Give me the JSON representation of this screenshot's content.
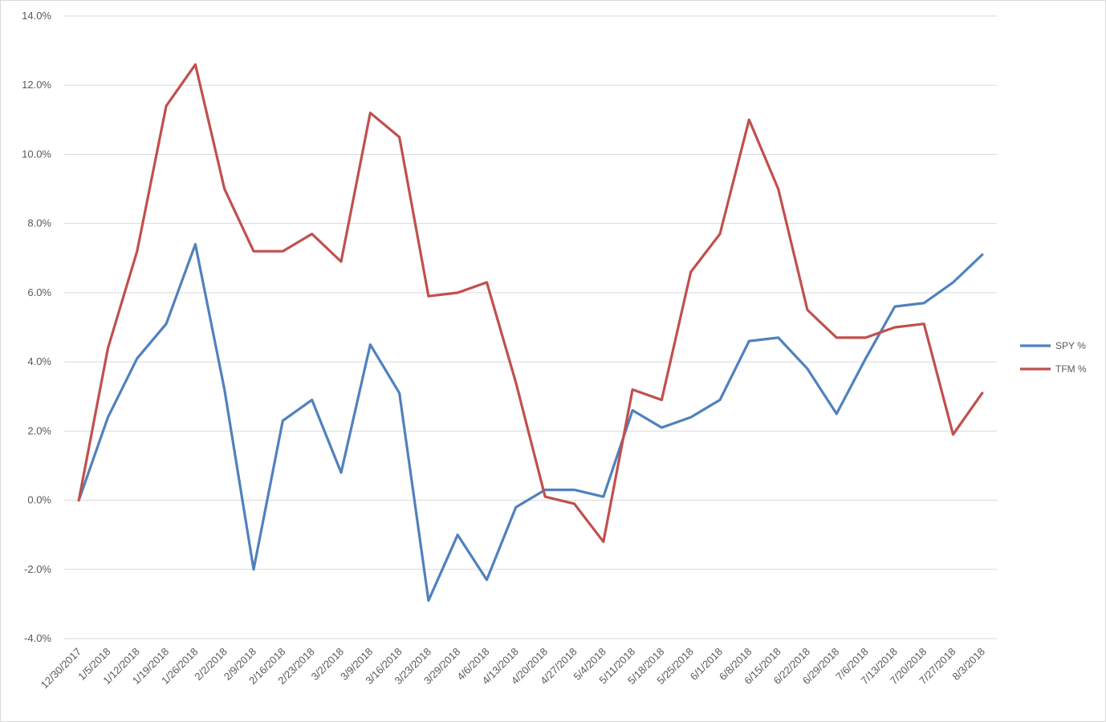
{
  "chart_data": {
    "type": "line",
    "title": "",
    "xlabel": "",
    "ylabel": "",
    "ylim": [
      -4.0,
      14.0
    ],
    "ytick_step": 2.0,
    "ytick_format": "percent_1dp",
    "grid": true,
    "legend_position": "right",
    "categories": [
      "12/30/2017",
      "1/5/2018",
      "1/12/2018",
      "1/19/2018",
      "1/26/2018",
      "2/2/2018",
      "2/9/2018",
      "2/16/2018",
      "2/23/2018",
      "3/2/2018",
      "3/9/2018",
      "3/16/2018",
      "3/23/2018",
      "3/29/2018",
      "4/6/2018",
      "4/13/2018",
      "4/20/2018",
      "4/27/2018",
      "5/4/2018",
      "5/11/2018",
      "5/18/2018",
      "5/25/2018",
      "6/1/2018",
      "6/8/2018",
      "6/15/2018",
      "6/22/2018",
      "6/29/2018",
      "7/6/2018",
      "7/13/2018",
      "7/20/2018",
      "7/27/2018",
      "8/3/2018"
    ],
    "series": [
      {
        "name": "SPY %",
        "color": "#4f81bd",
        "values": [
          0.0,
          2.4,
          4.1,
          5.1,
          7.4,
          3.2,
          -2.0,
          2.3,
          2.9,
          0.8,
          4.5,
          3.1,
          -2.9,
          -1.0,
          -2.3,
          -0.2,
          0.3,
          0.3,
          0.1,
          2.6,
          2.1,
          2.4,
          2.9,
          4.6,
          4.7,
          3.8,
          2.5,
          4.1,
          5.6,
          5.7,
          6.3,
          7.1
        ]
      },
      {
        "name": "TFM %",
        "color": "#c0504d",
        "values": [
          0.0,
          4.4,
          7.2,
          11.4,
          12.6,
          9.0,
          7.2,
          7.2,
          7.7,
          6.9,
          11.2,
          10.5,
          5.9,
          6.0,
          6.3,
          3.4,
          0.1,
          -0.1,
          -1.2,
          3.2,
          2.9,
          6.6,
          7.7,
          11.0,
          9.0,
          5.5,
          4.7,
          4.7,
          5.0,
          5.1,
          1.9,
          3.1
        ]
      }
    ]
  }
}
